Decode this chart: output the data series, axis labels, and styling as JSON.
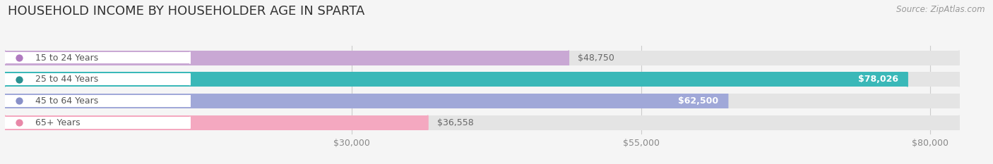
{
  "title": "HOUSEHOLD INCOME BY HOUSEHOLDER AGE IN SPARTA",
  "source": "Source: ZipAtlas.com",
  "categories": [
    "15 to 24 Years",
    "25 to 44 Years",
    "45 to 64 Years",
    "65+ Years"
  ],
  "values": [
    48750,
    78026,
    62500,
    36558
  ],
  "bar_colors": [
    "#c9a8d4",
    "#3ab8b8",
    "#a0a8d8",
    "#f4a8c0"
  ],
  "value_label_colors": [
    "#666666",
    "#ffffff",
    "#ffffff",
    "#666666"
  ],
  "dot_colors": [
    "#b07ac0",
    "#2a9090",
    "#8890c8",
    "#e888a8"
  ],
  "xlim_min": 0,
  "xlim_max": 85000,
  "xticks": [
    30000,
    55000,
    80000
  ],
  "xtick_labels": [
    "$30,000",
    "$55,000",
    "$80,000"
  ],
  "bg_color": "#f5f5f5",
  "bar_bg_color": "#e4e4e4",
  "bar_bg_color2": "#ebebeb",
  "title_fontsize": 13,
  "cat_fontsize": 9,
  "val_fontsize": 9,
  "source_fontsize": 8.5
}
